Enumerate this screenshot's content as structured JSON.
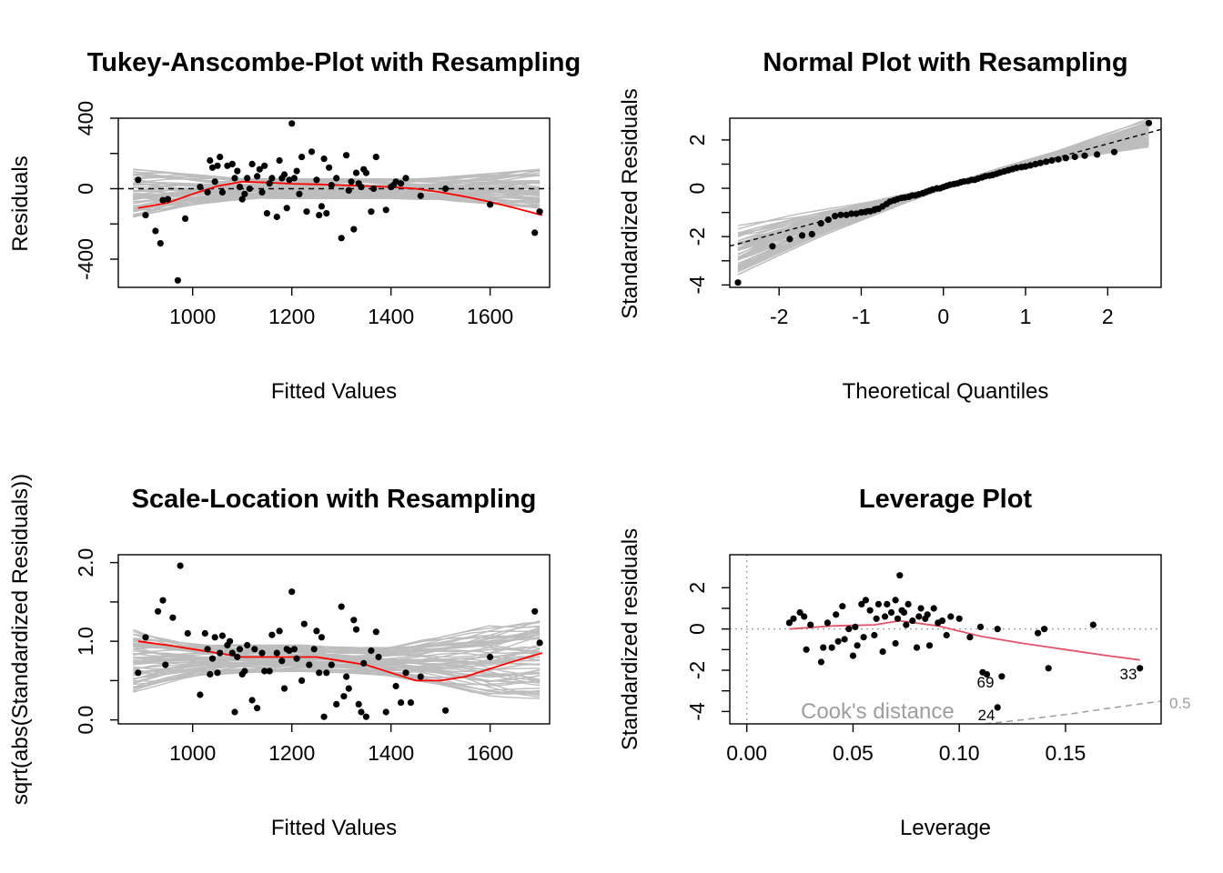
{
  "chart_data": [
    {
      "type": "scatter",
      "title": "Tukey-Anscombe-Plot with Resampling",
      "xlabel": "Fitted Values",
      "ylabel": "Residuals",
      "xlim": [
        850,
        1720
      ],
      "ylim": [
        -560,
        400
      ],
      "xticks": [
        1000,
        1200,
        1400,
        1600
      ],
      "yticks": [
        -400,
        0,
        400
      ],
      "xtick_labels": [
        "1000",
        "1200",
        "1400",
        "1600"
      ],
      "ytick_labels": [
        "-400",
        "0",
        "400"
      ],
      "reference_line": 0,
      "band": {
        "x": [
          880,
          1000,
          1100,
          1200,
          1300,
          1400,
          1500,
          1600,
          1700
        ],
        "lower": [
          -160,
          -90,
          -60,
          -55,
          -55,
          -55,
          -65,
          -85,
          -110
        ],
        "upper": [
          110,
          80,
          60,
          55,
          55,
          55,
          65,
          85,
          110
        ]
      },
      "smoother": {
        "x": [
          890,
          950,
          1000,
          1050,
          1100,
          1150,
          1200,
          1250,
          1300,
          1350,
          1400,
          1450,
          1500,
          1550,
          1600,
          1650,
          1705
        ],
        "y": [
          -110,
          -80,
          -30,
          15,
          40,
          35,
          28,
          25,
          20,
          15,
          10,
          0,
          -20,
          -45,
          -75,
          -110,
          -150
        ]
      },
      "points": {
        "x": [
          890,
          905,
          925,
          935,
          940,
          950,
          970,
          985,
          1015,
          1030,
          1035,
          1040,
          1045,
          1050,
          1055,
          1060,
          1070,
          1080,
          1085,
          1090,
          1095,
          1100,
          1105,
          1110,
          1115,
          1120,
          1130,
          1135,
          1140,
          1145,
          1150,
          1155,
          1160,
          1170,
          1175,
          1180,
          1185,
          1190,
          1195,
          1200,
          1205,
          1210,
          1215,
          1220,
          1230,
          1240,
          1250,
          1255,
          1260,
          1265,
          1270,
          1275,
          1280,
          1290,
          1300,
          1310,
          1315,
          1320,
          1325,
          1330,
          1335,
          1340,
          1345,
          1350,
          1360,
          1365,
          1370,
          1390,
          1400,
          1405,
          1410,
          1420,
          1430,
          1460,
          1510,
          1600,
          1690,
          1700
        ],
        "y": [
          50,
          -150,
          -240,
          -310,
          -65,
          -60,
          -520,
          -170,
          10,
          -20,
          160,
          120,
          40,
          130,
          180,
          -20,
          130,
          140,
          60,
          100,
          10,
          -60,
          -30,
          60,
          0,
          140,
          70,
          110,
          -20,
          130,
          -140,
          30,
          60,
          -160,
          160,
          60,
          80,
          -110,
          50,
          370,
          60,
          100,
          -30,
          180,
          -130,
          210,
          50,
          -150,
          -100,
          170,
          -140,
          120,
          20,
          60,
          -280,
          190,
          -10,
          40,
          -230,
          90,
          30,
          10,
          110,
          90,
          -130,
          0,
          180,
          -120,
          10,
          20,
          40,
          30,
          60,
          -40,
          0,
          -90,
          -250,
          -130
        ]
      }
    },
    {
      "type": "scatter",
      "title": "Normal Plot with Resampling",
      "xlabel": "Theoretical Quantiles",
      "ylabel": "Standardized Residuals",
      "xlim": [
        -2.6,
        2.65
      ],
      "ylim": [
        -4.1,
        2.9
      ],
      "xticks": [
        -2,
        -1,
        0,
        1,
        2
      ],
      "yticks": [
        -4,
        -2,
        0,
        2
      ],
      "xtick_labels": [
        "-2",
        "-1",
        "0",
        "1",
        "2"
      ],
      "ytick_labels": [
        "-4",
        "-2",
        "0",
        "2"
      ],
      "reference_line": {
        "slope": 0.92,
        "intercept": 0.0
      },
      "band": {
        "x": [
          -2.5,
          -1.5,
          -0.5,
          0.0,
          0.5,
          1.5,
          2.5
        ],
        "lower": [
          -3.6,
          -2.0,
          -0.65,
          -0.05,
          0.4,
          1.2,
          1.7
        ],
        "upper": [
          -1.5,
          -0.9,
          -0.25,
          0.05,
          0.65,
          1.7,
          2.9
        ]
      },
      "points": {
        "x": [
          -2.5,
          -2.08,
          -1.87,
          -1.72,
          -1.6,
          -1.49,
          -1.4,
          -1.32,
          -1.25,
          -1.18,
          -1.12,
          -1.06,
          -1.0,
          -0.95,
          -0.89,
          -0.84,
          -0.79,
          -0.74,
          -0.69,
          -0.65,
          -0.6,
          -0.56,
          -0.51,
          -0.47,
          -0.42,
          -0.38,
          -0.34,
          -0.3,
          -0.25,
          -0.21,
          -0.17,
          -0.13,
          -0.08,
          -0.04,
          0.0,
          0.04,
          0.08,
          0.13,
          0.17,
          0.21,
          0.25,
          0.3,
          0.34,
          0.38,
          0.42,
          0.47,
          0.51,
          0.56,
          0.6,
          0.65,
          0.69,
          0.74,
          0.79,
          0.84,
          0.89,
          0.95,
          1.0,
          1.06,
          1.12,
          1.18,
          1.25,
          1.32,
          1.4,
          1.49,
          1.6,
          1.72,
          1.87,
          2.08,
          2.5
        ],
        "y": [
          -3.9,
          -2.4,
          -2.1,
          -1.95,
          -1.9,
          -1.45,
          -1.3,
          -1.15,
          -1.1,
          -1.1,
          -1.05,
          -1.05,
          -1.0,
          -0.98,
          -0.95,
          -0.9,
          -0.85,
          -0.75,
          -0.65,
          -0.55,
          -0.5,
          -0.45,
          -0.4,
          -0.38,
          -0.35,
          -0.3,
          -0.3,
          -0.25,
          -0.2,
          -0.15,
          -0.1,
          -0.05,
          0.0,
          0.0,
          0.05,
          0.1,
          0.15,
          0.18,
          0.2,
          0.25,
          0.28,
          0.3,
          0.35,
          0.35,
          0.4,
          0.45,
          0.5,
          0.52,
          0.55,
          0.6,
          0.65,
          0.7,
          0.75,
          0.8,
          0.85,
          0.88,
          0.9,
          0.95,
          1.0,
          1.05,
          1.1,
          1.15,
          1.2,
          1.25,
          1.3,
          1.35,
          1.4,
          1.5,
          2.7
        ]
      }
    },
    {
      "type": "scatter",
      "title": "Scale-Location with Resampling",
      "xlabel": "Fitted Values",
      "ylabel": "sqrt(abs(Standardized Residuals))",
      "xlim": [
        850,
        1720
      ],
      "ylim": [
        -0.05,
        2.1
      ],
      "xticks": [
        1000,
        1200,
        1400,
        1600
      ],
      "yticks": [
        0.0,
        1.0,
        2.0
      ],
      "xtick_labels": [
        "1000",
        "1200",
        "1400",
        "1600"
      ],
      "ytick_labels": [
        "0.0",
        "1.0",
        "2.0"
      ],
      "band": {
        "x": [
          880,
          1000,
          1100,
          1200,
          1300,
          1400,
          1500,
          1600,
          1700
        ],
        "lower": [
          0.35,
          0.55,
          0.6,
          0.62,
          0.6,
          0.55,
          0.45,
          0.3,
          0.25
        ],
        "upper": [
          1.15,
          1.0,
          0.95,
          0.95,
          0.95,
          0.95,
          1.05,
          1.2,
          1.35
        ]
      },
      "smoother": {
        "x": [
          890,
          950,
          1000,
          1050,
          1100,
          1150,
          1200,
          1250,
          1300,
          1350,
          1400,
          1450,
          1500,
          1550,
          1600,
          1650,
          1705
        ],
        "y": [
          1.0,
          0.95,
          0.9,
          0.85,
          0.8,
          0.8,
          0.8,
          0.8,
          0.75,
          0.7,
          0.6,
          0.5,
          0.5,
          0.55,
          0.65,
          0.75,
          0.85
        ]
      },
      "points": {
        "x": [
          890,
          905,
          930,
          940,
          945,
          960,
          975,
          990,
          1015,
          1025,
          1030,
          1035,
          1040,
          1045,
          1050,
          1055,
          1060,
          1070,
          1075,
          1080,
          1085,
          1090,
          1095,
          1100,
          1105,
          1110,
          1120,
          1125,
          1130,
          1140,
          1145,
          1155,
          1160,
          1170,
          1175,
          1180,
          1185,
          1190,
          1195,
          1200,
          1205,
          1210,
          1220,
          1225,
          1235,
          1245,
          1250,
          1255,
          1260,
          1265,
          1270,
          1280,
          1290,
          1300,
          1305,
          1310,
          1315,
          1325,
          1330,
          1335,
          1340,
          1345,
          1350,
          1360,
          1370,
          1375,
          1390,
          1410,
          1420,
          1430,
          1440,
          1460,
          1510,
          1600,
          1690,
          1700
        ],
        "y": [
          0.6,
          1.05,
          1.38,
          1.52,
          0.7,
          1.3,
          1.96,
          1.1,
          0.32,
          1.1,
          0.9,
          0.58,
          0.78,
          1.05,
          0.6,
          0.85,
          1.07,
          0.95,
          1.0,
          0.85,
          0.1,
          0.8,
          0.9,
          0.58,
          0.62,
          0.95,
          0.25,
          0.9,
          0.15,
          0.85,
          0.62,
          0.62,
          1.08,
          0.85,
          1.13,
          0.75,
          0.4,
          0.9,
          0.88,
          1.63,
          0.9,
          0.78,
          0.5,
          1.22,
          0.7,
          0.9,
          1.13,
          0.6,
          1.05,
          0.04,
          0.6,
          0.7,
          0.2,
          1.44,
          0.3,
          0.55,
          0.4,
          1.27,
          1.15,
          0.2,
          0.1,
          0.72,
          0.04,
          0.88,
          1.12,
          0.8,
          0.1,
          0.43,
          0.22,
          0.6,
          0.22,
          0.55,
          0.12,
          0.8,
          1.38,
          0.98
        ]
      }
    },
    {
      "type": "scatter",
      "title": "Leverage Plot",
      "xlabel": "Leverage",
      "ylabel": "Standardized residuals",
      "xlim": [
        -0.008,
        0.195
      ],
      "ylim": [
        -4.6,
        3.6
      ],
      "xticks": [
        0.0,
        0.05,
        0.1,
        0.15
      ],
      "yticks": [
        -4,
        -2,
        0,
        2
      ],
      "xtick_labels": [
        "0.00",
        "0.05",
        "0.10",
        "0.15"
      ],
      "ytick_labels": [
        "-4",
        "-2",
        "0",
        "2"
      ],
      "smoother": {
        "x": [
          0.02,
          0.04,
          0.06,
          0.072,
          0.09,
          0.11,
          0.13,
          0.15,
          0.17,
          0.185
        ],
        "y": [
          0.0,
          0.15,
          0.2,
          0.4,
          0.15,
          -0.35,
          -0.7,
          -1.0,
          -1.3,
          -1.5
        ]
      },
      "cooks_distance": {
        "label": "Cook's distance",
        "contour_label": "0.5",
        "x": [
          0.112,
          0.13,
          0.15,
          0.17,
          0.195
        ],
        "y": [
          -4.6,
          -4.4,
          -4.15,
          -3.85,
          -3.5
        ]
      },
      "annotations": [
        "69",
        "24",
        "33"
      ],
      "annotation_points": [
        {
          "x": 0.111,
          "y": -2.1,
          "label": "69"
        },
        {
          "x": 0.118,
          "y": -3.8,
          "label": "24"
        },
        {
          "x": 0.185,
          "y": -1.9,
          "label": "33"
        }
      ],
      "points": {
        "x": [
          0.02,
          0.022,
          0.025,
          0.027,
          0.028,
          0.03,
          0.035,
          0.036,
          0.038,
          0.04,
          0.042,
          0.043,
          0.045,
          0.046,
          0.048,
          0.05,
          0.051,
          0.052,
          0.054,
          0.055,
          0.056,
          0.058,
          0.06,
          0.061,
          0.062,
          0.064,
          0.065,
          0.066,
          0.068,
          0.07,
          0.07,
          0.071,
          0.072,
          0.073,
          0.074,
          0.075,
          0.076,
          0.078,
          0.08,
          0.081,
          0.082,
          0.084,
          0.085,
          0.086,
          0.088,
          0.09,
          0.092,
          0.094,
          0.096,
          0.1,
          0.105,
          0.11,
          0.113,
          0.118,
          0.12,
          0.137,
          0.14,
          0.142,
          0.163,
          0.111,
          0.118,
          0.185
        ],
        "y": [
          0.3,
          0.5,
          0.8,
          0.6,
          -1.0,
          0.2,
          -1.6,
          -0.9,
          0.3,
          -0.9,
          0.7,
          -0.6,
          1.1,
          -0.5,
          0.0,
          -1.3,
          0.1,
          -0.8,
          1.2,
          -0.4,
          1.4,
          0.9,
          -0.3,
          0.5,
          1.2,
          -1.1,
          0.6,
          1.2,
          0.8,
          1.4,
          -0.7,
          0.5,
          2.6,
          0.9,
          0.8,
          0.2,
          1.2,
          0.4,
          -0.9,
          0.6,
          1.0,
          0.5,
          0.7,
          -0.8,
          1.0,
          0.3,
          0.4,
          -0.3,
          0.6,
          0.5,
          -0.4,
          0.1,
          -2.2,
          0.0,
          -2.3,
          -0.2,
          0.0,
          -1.9,
          0.2,
          -2.1,
          -3.8,
          -1.9
        ]
      }
    }
  ]
}
